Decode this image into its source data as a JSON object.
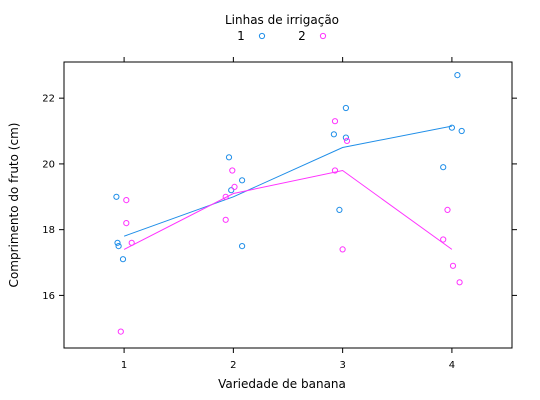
{
  "chart_data": {
    "type": "scatter",
    "xlabel": "Variedade de banana",
    "ylabel": "Comprimento do fruto (cm)",
    "x_ticks": [
      1,
      2,
      3,
      4
    ],
    "y_ticks": [
      16,
      18,
      20,
      22
    ],
    "xlim": [
      0.45,
      4.55
    ],
    "ylim": [
      14.4,
      23.1
    ],
    "grid": false,
    "legend": {
      "title": "Linhas de irrigação",
      "placement": "top-center",
      "entries": [
        "1",
        "2"
      ]
    },
    "series": [
      {
        "name": "1",
        "color": "#1f8ee8",
        "marker": "open-circle",
        "points": [
          [
            0.93,
            19.0
          ],
          [
            0.94,
            17.6
          ],
          [
            0.95,
            17.5
          ],
          [
            0.99,
            17.1
          ],
          [
            1.96,
            20.2
          ],
          [
            1.98,
            19.2
          ],
          [
            2.08,
            19.5
          ],
          [
            2.08,
            17.5
          ],
          [
            2.92,
            20.9
          ],
          [
            2.97,
            18.6
          ],
          [
            3.03,
            21.7
          ],
          [
            3.03,
            20.8
          ],
          [
            3.92,
            19.9
          ],
          [
            4.0,
            21.1
          ],
          [
            4.05,
            22.7
          ],
          [
            4.09,
            21.0
          ]
        ],
        "trend": [
          [
            1,
            17.8
          ],
          [
            2,
            19.0
          ],
          [
            3,
            20.5
          ],
          [
            4,
            21.15
          ]
        ]
      },
      {
        "name": "2",
        "color": "#ff33ff",
        "marker": "open-circle",
        "points": [
          [
            0.97,
            14.9
          ],
          [
            1.02,
            18.9
          ],
          [
            1.02,
            18.2
          ],
          [
            1.07,
            17.6
          ],
          [
            1.93,
            18.3
          ],
          [
            1.93,
            19.0
          ],
          [
            1.99,
            19.8
          ],
          [
            2.01,
            19.3
          ],
          [
            2.93,
            21.3
          ],
          [
            2.93,
            19.8
          ],
          [
            3.0,
            17.4
          ],
          [
            3.04,
            20.7
          ],
          [
            3.92,
            17.7
          ],
          [
            3.96,
            18.6
          ],
          [
            4.01,
            16.9
          ],
          [
            4.07,
            16.4
          ]
        ],
        "trend": [
          [
            1,
            17.4
          ],
          [
            2,
            19.1
          ],
          [
            3,
            19.8
          ],
          [
            4,
            17.4
          ]
        ]
      }
    ]
  }
}
